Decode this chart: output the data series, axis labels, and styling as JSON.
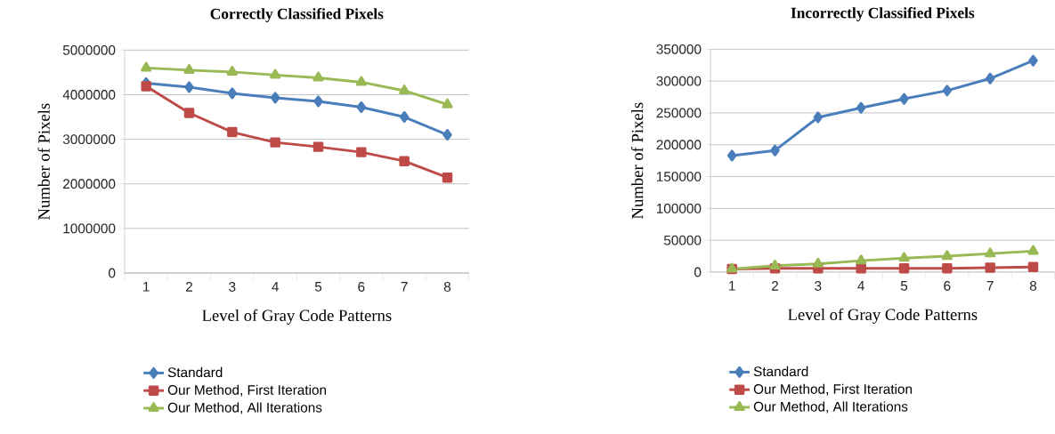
{
  "chart_data": [
    {
      "type": "line",
      "title": "Correctly Classified Pixels",
      "xlabel": "Level of Gray Code Patterns",
      "ylabel": "Number of Pixels",
      "categories": [
        "1",
        "2",
        "3",
        "4",
        "5",
        "6",
        "7",
        "8"
      ],
      "ylim": [
        0,
        5000000
      ],
      "yticks": [
        0,
        1000000,
        2000000,
        3000000,
        4000000,
        5000000
      ],
      "grid": "y",
      "legend": "bottom",
      "series": [
        {
          "name": "Standard",
          "color": "#4a7ebb",
          "marker": "diamond",
          "values": [
            4260000,
            4170000,
            4030000,
            3930000,
            3850000,
            3720000,
            3500000,
            3100000
          ]
        },
        {
          "name": "Our Method, First Iteration",
          "color": "#be4b48",
          "marker": "square",
          "values": [
            4190000,
            3590000,
            3160000,
            2930000,
            2830000,
            2710000,
            2510000,
            2140000
          ]
        },
        {
          "name": "Our Method, All Iterations",
          "color": "#98b954",
          "marker": "triangle",
          "values": [
            4600000,
            4550000,
            4510000,
            4440000,
            4380000,
            4280000,
            4090000,
            3780000
          ]
        }
      ]
    },
    {
      "type": "line",
      "title": "Incorrectly Classified Pixels",
      "xlabel": "Level of Gray Code Patterns",
      "ylabel": "Number of Pixels",
      "categories": [
        "1",
        "2",
        "3",
        "4",
        "5",
        "6",
        "7",
        "8"
      ],
      "ylim": [
        0,
        350000
      ],
      "yticks": [
        0,
        50000,
        100000,
        150000,
        200000,
        250000,
        300000,
        350000
      ],
      "grid": "y",
      "legend": "bottom",
      "series": [
        {
          "name": "Standard",
          "color": "#4a7ebb",
          "marker": "diamond",
          "values": [
            183000,
            191000,
            243000,
            258000,
            272000,
            285000,
            304000,
            332000
          ]
        },
        {
          "name": "Our Method, First Iteration",
          "color": "#be4b48",
          "marker": "square",
          "values": [
            5000,
            6000,
            6000,
            6000,
            6000,
            6000,
            7000,
            8000
          ]
        },
        {
          "name": "Our Method, All Iterations",
          "color": "#98b954",
          "marker": "triangle",
          "values": [
            5000,
            10000,
            13000,
            18000,
            22000,
            25000,
            29000,
            33000
          ]
        }
      ]
    }
  ]
}
